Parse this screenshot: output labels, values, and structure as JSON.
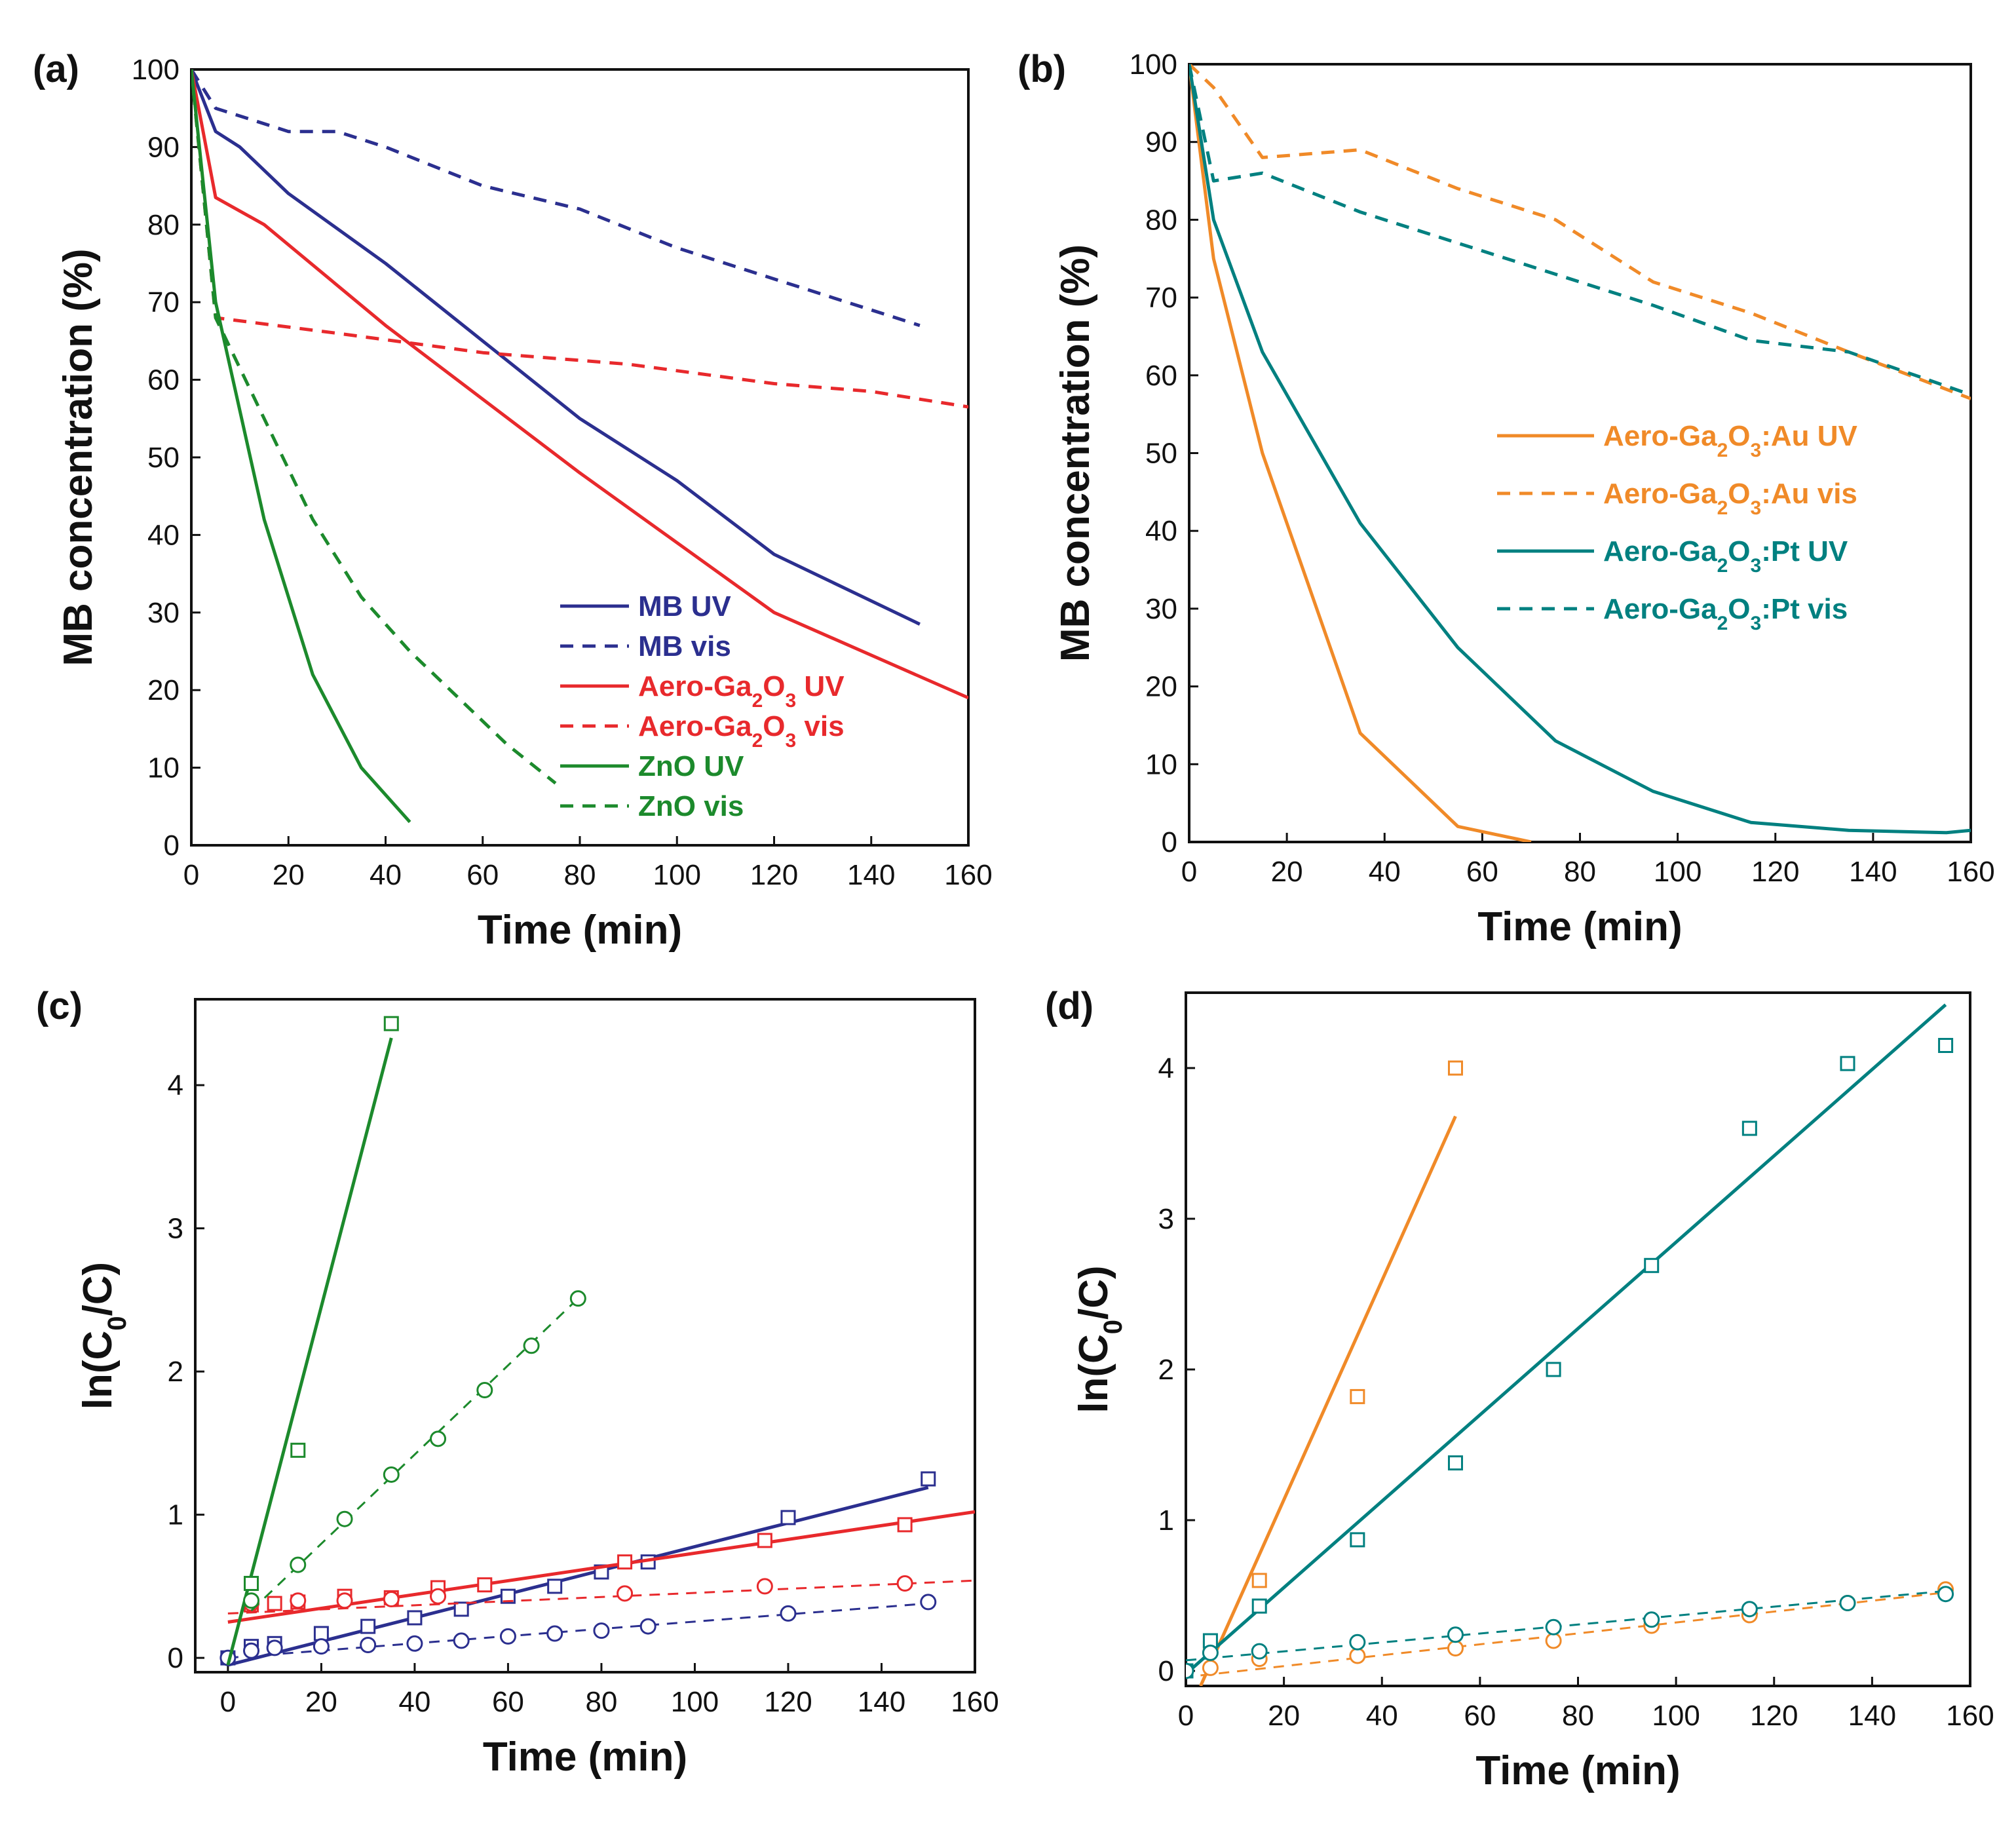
{
  "chart_data": [
    {
      "id": "a",
      "panel_label": "(a)",
      "type": "line",
      "xlabel": "Time (min)",
      "ylabel": "MB concentration (%)",
      "xlim": [
        0,
        160
      ],
      "ylim": [
        0,
        100
      ],
      "xticks": [
        0,
        20,
        40,
        60,
        80,
        100,
        120,
        140,
        160
      ],
      "yticks": [
        0,
        10,
        20,
        30,
        40,
        50,
        60,
        70,
        80,
        90,
        100
      ],
      "legend_position": "lower-right",
      "series": [
        {
          "name": "MB UV",
          "color": "#2b2f8f",
          "style": "solid",
          "x": [
            0,
            5,
            10,
            20,
            40,
            60,
            80,
            100,
            120,
            150
          ],
          "y": [
            100,
            92,
            90,
            84,
            75,
            65,
            55,
            47,
            37.5,
            28.5
          ]
        },
        {
          "name": "MB vis",
          "color": "#2b2f8f",
          "style": "dashed",
          "x": [
            0,
            5,
            20,
            30,
            40,
            60,
            80,
            100,
            120,
            150
          ],
          "y": [
            100,
            95,
            92,
            92,
            90,
            85,
            82,
            77,
            73,
            67
          ]
        },
        {
          "name": "Aero-Ga₂O₃ UV",
          "color": "#e8292c",
          "style": "solid",
          "x": [
            0,
            5,
            15,
            40,
            80,
            120,
            160
          ],
          "y": [
            100,
            83.5,
            80,
            67,
            48,
            30,
            19
          ]
        },
        {
          "name": "Aero-Ga₂O₃ vis",
          "color": "#e8292c",
          "style": "dashed",
          "x": [
            0,
            5,
            30,
            60,
            90,
            120,
            140,
            160
          ],
          "y": [
            100,
            68,
            66,
            63.5,
            62,
            59.5,
            58.5,
            56.5
          ]
        },
        {
          "name": "ZnO UV",
          "color": "#1c8a2c",
          "style": "solid",
          "x": [
            0,
            5,
            15,
            25,
            35,
            45
          ],
          "y": [
            100,
            70,
            42,
            22,
            10,
            3
          ]
        },
        {
          "name": "ZnO vis",
          "color": "#1c8a2c",
          "style": "dashed",
          "x": [
            0,
            5,
            15,
            25,
            35,
            45,
            65,
            75
          ],
          "y": [
            100,
            68,
            55,
            42,
            32,
            25,
            13,
            8
          ]
        }
      ]
    },
    {
      "id": "b",
      "panel_label": "(b)",
      "type": "line",
      "xlabel": "Time (min)",
      "ylabel": "MB concentration (%)",
      "xlim": [
        0,
        160
      ],
      "ylim": [
        0,
        100
      ],
      "xticks": [
        0,
        20,
        40,
        60,
        80,
        100,
        120,
        140,
        160
      ],
      "yticks": [
        0,
        10,
        20,
        30,
        40,
        50,
        60,
        70,
        80,
        90,
        100
      ],
      "legend_position": "center-right",
      "series": [
        {
          "name": "Aero-Ga₂O₃:Au UV",
          "color": "#f08a28",
          "style": "solid",
          "x": [
            0,
            5,
            15,
            35,
            55,
            70
          ],
          "y": [
            100,
            75,
            50,
            14,
            2,
            0
          ]
        },
        {
          "name": "Aero-Ga₂O₃:Au vis",
          "color": "#f08a28",
          "style": "dashed",
          "x": [
            0,
            5,
            15,
            35,
            55,
            75,
            95,
            115,
            135,
            160
          ],
          "y": [
            100,
            97,
            88,
            89,
            84,
            80,
            72,
            68,
            63,
            57
          ]
        },
        {
          "name": "Aero-Ga₂O₃:Pt UV",
          "color": "#008080",
          "style": "solid",
          "x": [
            0,
            5,
            15,
            35,
            55,
            75,
            95,
            115,
            135,
            155,
            160
          ],
          "y": [
            100,
            80,
            63,
            41,
            25,
            13,
            6.5,
            2.5,
            1.5,
            1.2,
            1.5
          ]
        },
        {
          "name": "Aero-Ga₂O₃:Pt vis",
          "color": "#008080",
          "style": "dashed",
          "x": [
            0,
            5,
            15,
            35,
            55,
            75,
            95,
            115,
            135,
            160
          ],
          "y": [
            100,
            85,
            86,
            81,
            77,
            73,
            69,
            64.5,
            63,
            57.5
          ]
        }
      ]
    },
    {
      "id": "c",
      "panel_label": "(c)",
      "type": "scatter",
      "xlabel": "Time (min)",
      "ylabel": "ln(C₀/C)",
      "xlim": [
        -7,
        160
      ],
      "ylim": [
        -0.1,
        4.6
      ],
      "xticks": [
        0,
        20,
        40,
        60,
        80,
        100,
        120,
        140,
        160
      ],
      "yticks": [
        0,
        1,
        2,
        3,
        4
      ],
      "series": [
        {
          "name": "MB UV",
          "color": "#2b2f8f",
          "marker": "square",
          "fit_style": "solid",
          "x": [
            0,
            5,
            10,
            20,
            30,
            40,
            50,
            60,
            70,
            80,
            90,
            120,
            150
          ],
          "y": [
            0,
            0.08,
            0.1,
            0.17,
            0.22,
            0.28,
            0.34,
            0.43,
            0.5,
            0.6,
            0.67,
            0.98,
            1.25
          ],
          "fit_x": [
            0,
            150
          ],
          "fit_y": [
            -0.05,
            1.19
          ]
        },
        {
          "name": "MB vis",
          "color": "#2b2f8f",
          "marker": "circle",
          "fit_style": "dashed",
          "x": [
            0,
            5,
            10,
            20,
            30,
            40,
            50,
            60,
            70,
            80,
            90,
            120,
            150
          ],
          "y": [
            0,
            0.05,
            0.07,
            0.08,
            0.09,
            0.1,
            0.12,
            0.15,
            0.17,
            0.19,
            0.22,
            0.31,
            0.39
          ],
          "fit_x": [
            0,
            150
          ],
          "fit_y": [
            0,
            0.38
          ]
        },
        {
          "name": "Aero-Ga₂O₃ UV",
          "color": "#e8292c",
          "marker": "square",
          "fit_style": "solid",
          "x": [
            5,
            10,
            15,
            25,
            35,
            45,
            55,
            85,
            115,
            145
          ],
          "y": [
            0.37,
            0.38,
            0.39,
            0.43,
            0.42,
            0.49,
            0.51,
            0.67,
            0.82,
            0.93
          ],
          "fit_x": [
            0,
            160
          ],
          "fit_y": [
            0.25,
            1.02
          ]
        },
        {
          "name": "Aero-Ga₂O₃ vis",
          "color": "#e8292c",
          "marker": "circle",
          "fit_style": "dashed",
          "x": [
            5,
            15,
            25,
            35,
            45,
            85,
            115,
            145
          ],
          "y": [
            0.38,
            0.4,
            0.4,
            0.41,
            0.43,
            0.45,
            0.5,
            0.52
          ],
          "fit_x": [
            0,
            160
          ],
          "fit_y": [
            0.31,
            0.54
          ]
        },
        {
          "name": "ZnO UV",
          "color": "#1c8a2c",
          "marker": "square",
          "fit_style": "solid",
          "x": [
            5,
            15,
            35
          ],
          "y": [
            0.52,
            1.45,
            4.43
          ],
          "fit_x": [
            0,
            35
          ],
          "fit_y": [
            -0.05,
            4.33
          ]
        },
        {
          "name": "ZnO vis",
          "color": "#1c8a2c",
          "marker": "circle",
          "fit_style": "dashed",
          "x": [
            5,
            15,
            25,
            35,
            45,
            55,
            65,
            75
          ],
          "y": [
            0.4,
            0.65,
            0.97,
            1.28,
            1.53,
            1.87,
            2.18,
            2.51
          ],
          "fit_x": [
            5,
            75
          ],
          "fit_y": [
            0.33,
            2.51
          ]
        }
      ]
    },
    {
      "id": "d",
      "panel_label": "(d)",
      "type": "scatter",
      "xlabel": "Time (min)",
      "ylabel": "ln(C₀/C)",
      "xlim": [
        0,
        160
      ],
      "ylim": [
        -0.1,
        4.5
      ],
      "xticks": [
        0,
        20,
        40,
        60,
        80,
        100,
        120,
        140,
        160
      ],
      "yticks": [
        0,
        1,
        2,
        3,
        4
      ],
      "series": [
        {
          "name": "Aero-Ga₂O₃:Au UV",
          "color": "#f08a28",
          "marker": "square",
          "fit_style": "solid",
          "x": [
            5,
            15,
            35,
            55
          ],
          "y": [
            0.15,
            0.6,
            1.82,
            4.0
          ],
          "fit_x": [
            3,
            55
          ],
          "fit_y": [
            -0.1,
            3.68
          ]
        },
        {
          "name": "Aero-Ga₂O₃:Au vis",
          "color": "#f08a28",
          "marker": "circle",
          "fit_style": "dashed",
          "x": [
            5,
            15,
            35,
            55,
            75,
            95,
            115,
            135,
            155
          ],
          "y": [
            0.02,
            0.08,
            0.1,
            0.15,
            0.2,
            0.3,
            0.37,
            0.45,
            0.54
          ],
          "fit_x": [
            3,
            155
          ],
          "fit_y": [
            -0.03,
            0.52
          ]
        },
        {
          "name": "Aero-Ga₂O₃:Pt UV",
          "color": "#008080",
          "marker": "square",
          "fit_style": "solid",
          "x": [
            0,
            5,
            15,
            35,
            55,
            75,
            95,
            115,
            135,
            155
          ],
          "y": [
            0,
            0.2,
            0.43,
            0.87,
            1.38,
            2.0,
            2.69,
            3.6,
            4.03,
            4.15
          ],
          "fit_x": [
            0,
            155
          ],
          "fit_y": [
            -0.02,
            4.42
          ]
        },
        {
          "name": "Aero-Ga₂O₃:Pt vis",
          "color": "#008080",
          "marker": "circle",
          "fit_style": "dashed",
          "x": [
            0,
            5,
            15,
            35,
            55,
            75,
            95,
            115,
            135,
            155
          ],
          "y": [
            0,
            0.12,
            0.13,
            0.19,
            0.24,
            0.29,
            0.34,
            0.41,
            0.45,
            0.51
          ],
          "fit_x": [
            0,
            155
          ],
          "fit_y": [
            0.07,
            0.53
          ]
        }
      ]
    }
  ]
}
